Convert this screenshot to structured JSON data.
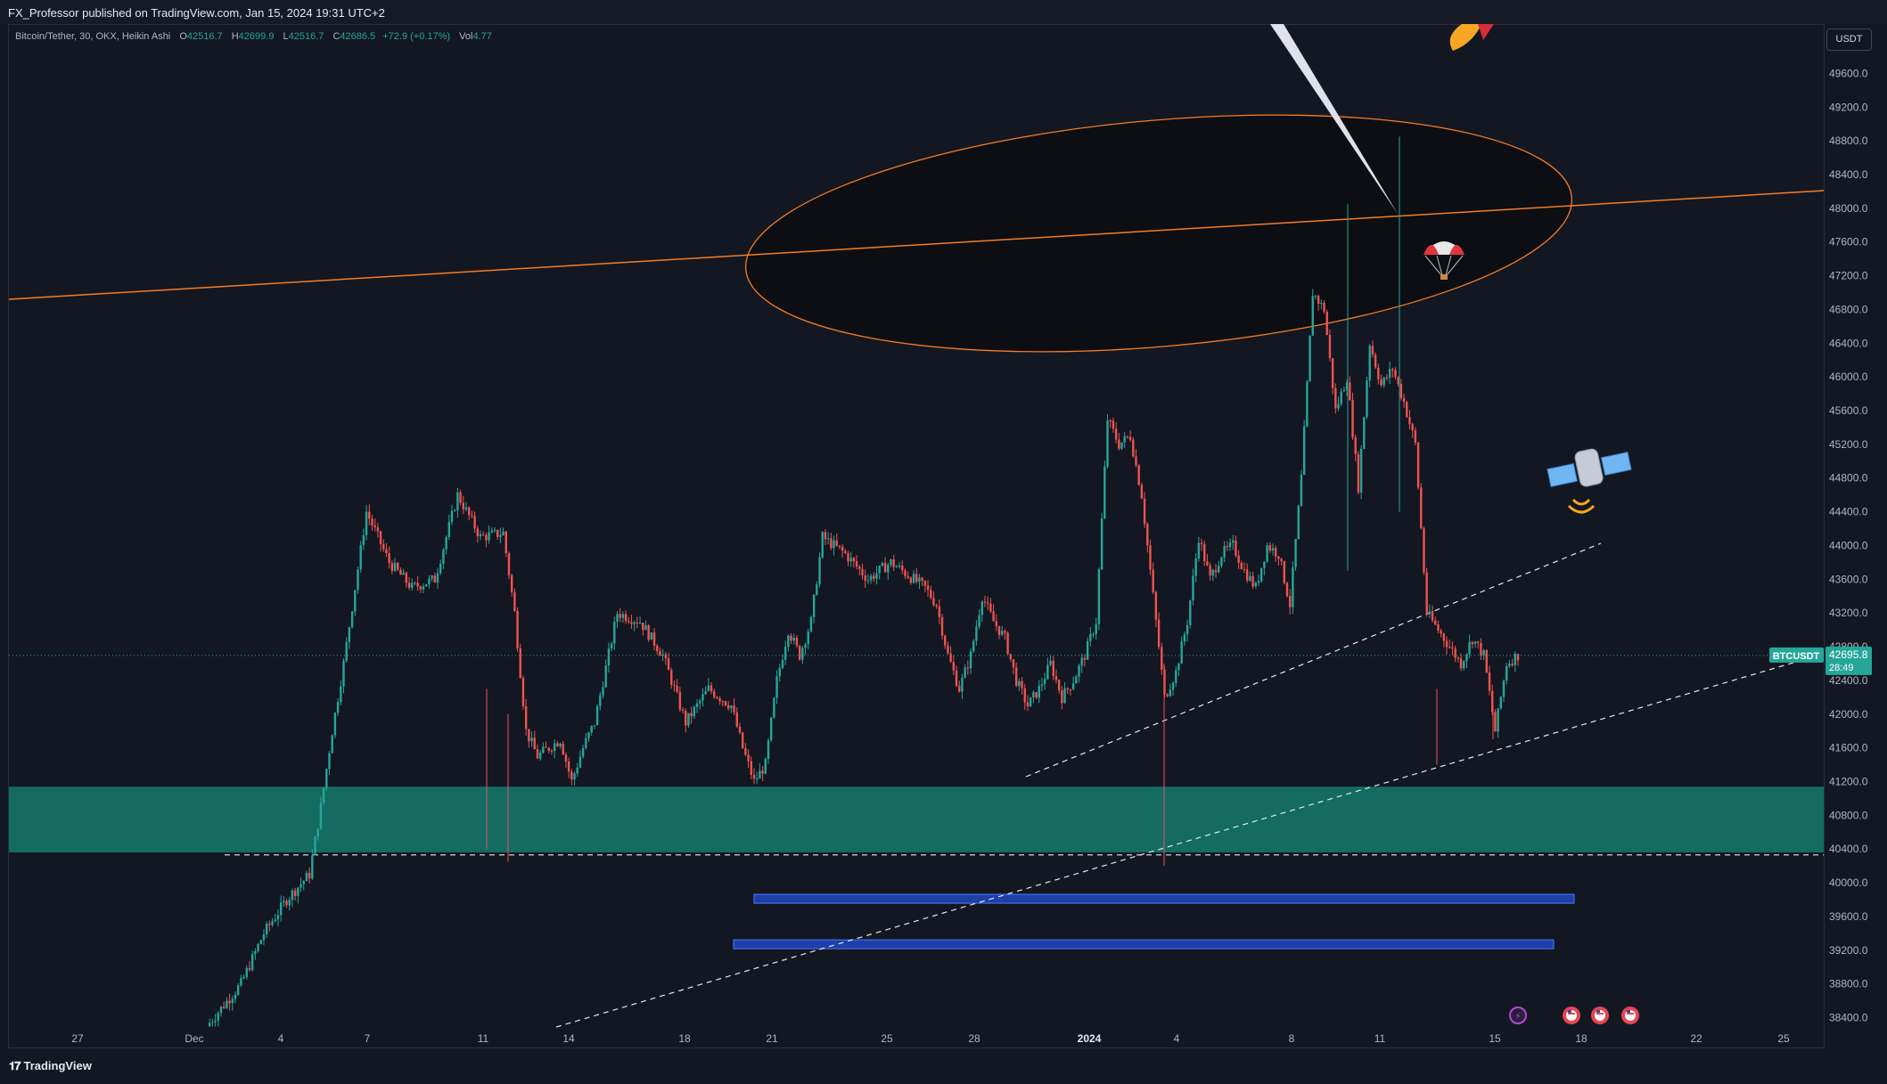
{
  "header": {
    "publisher_line": "FX_Professor published on TradingView.com, Jan 15, 2024 19:31 UTC+2"
  },
  "legend": {
    "symbol": "Bitcoin/Tether, 30, OKX, Heikin Ashi",
    "open_label": "O",
    "open": "42516.7",
    "high_label": "H",
    "high": "42699.9",
    "low_label": "L",
    "low": "42516.7",
    "close_label": "C",
    "close": "42686.5",
    "change": "+72.9 (+0.17%)",
    "vol_label": "Vol",
    "vol": "4.77"
  },
  "currency_button": "USDT",
  "last_price": {
    "symbol_tag": "BTCUSDT",
    "price": "42695.8",
    "countdown": "28:49"
  },
  "footer": {
    "brand": "TradingView"
  },
  "colors": {
    "background": "#131722",
    "up": "#26a69a",
    "down": "#ef5350",
    "zone": "#137066",
    "ellipse": "#f57c26",
    "blue_bar": "#1e3fa8"
  },
  "chart_data": {
    "type": "candlestick",
    "style": "Heikin Ashi",
    "symbol": "Bitcoin/Tether",
    "timeframe": "30",
    "exchange": "OKX",
    "y_axis": {
      "side": "right",
      "ticks": [
        "49600.0",
        "49200.0",
        "48800.0",
        "48400.0",
        "48000.0",
        "47600.0",
        "47200.0",
        "46800.0",
        "46400.0",
        "46000.0",
        "45600.0",
        "45200.0",
        "44800.0",
        "44400.0",
        "44000.0",
        "43600.0",
        "43200.0",
        "42800.0",
        "42400.0",
        "42000.0",
        "41600.0",
        "41200.0",
        "40800.0",
        "40400.0",
        "40000.0",
        "39600.0",
        "39200.0",
        "38800.0",
        "38400.0"
      ],
      "ylim": [
        38240,
        49900
      ]
    },
    "x_axis": {
      "ticks": [
        "27",
        "Dec",
        "4",
        "7",
        "11",
        "14",
        "18",
        "21",
        "25",
        "28",
        "2024",
        "4",
        "8",
        "11",
        "15",
        "18",
        "22",
        "25"
      ],
      "bold_ticks": [
        "2024"
      ]
    },
    "price_path": [
      [
        0,
        38300
      ],
      [
        3,
        38800
      ],
      [
        5,
        39400
      ],
      [
        7,
        39800
      ],
      [
        9,
        40100
      ],
      [
        10,
        40900
      ],
      [
        11,
        41800
      ],
      [
        12,
        42600
      ],
      [
        14,
        44400
      ],
      [
        16,
        43800
      ],
      [
        18,
        43500
      ],
      [
        20,
        43600
      ],
      [
        22,
        44600
      ],
      [
        24,
        44100
      ],
      [
        26,
        44150
      ],
      [
        27,
        43200
      ],
      [
        28,
        41800
      ],
      [
        29,
        41500
      ],
      [
        31,
        41700
      ],
      [
        32,
        41200
      ],
      [
        33,
        41600
      ],
      [
        34,
        41900
      ],
      [
        36,
        43200
      ],
      [
        38,
        43100
      ],
      [
        40,
        42700
      ],
      [
        42,
        41900
      ],
      [
        44,
        42300
      ],
      [
        46,
        42100
      ],
      [
        47,
        41600
      ],
      [
        48,
        41200
      ],
      [
        49,
        41400
      ],
      [
        50,
        42400
      ],
      [
        51,
        43000
      ],
      [
        52,
        42700
      ],
      [
        53,
        43100
      ],
      [
        54,
        44100
      ],
      [
        56,
        43900
      ],
      [
        58,
        43600
      ],
      [
        60,
        43800
      ],
      [
        61,
        43700
      ],
      [
        63,
        43500
      ],
      [
        64,
        43300
      ],
      [
        65,
        42700
      ],
      [
        66,
        42300
      ],
      [
        67,
        42700
      ],
      [
        68,
        43400
      ],
      [
        69,
        43100
      ],
      [
        70,
        42900
      ],
      [
        71,
        42400
      ],
      [
        72,
        42100
      ],
      [
        73,
        42300
      ],
      [
        74,
        42600
      ],
      [
        75,
        42200
      ],
      [
        76,
        42400
      ],
      [
        77,
        42700
      ],
      [
        78,
        43100
      ],
      [
        79,
        45500
      ],
      [
        80,
        45200
      ],
      [
        81,
        45300
      ],
      [
        82,
        44600
      ],
      [
        83,
        43400
      ],
      [
        84,
        42200
      ],
      [
        85,
        42500
      ],
      [
        86,
        43100
      ],
      [
        87,
        44100
      ],
      [
        88,
        43600
      ],
      [
        89,
        43900
      ],
      [
        90,
        44000
      ],
      [
        91,
        43700
      ],
      [
        92,
        43500
      ],
      [
        93,
        44000
      ],
      [
        94,
        43900
      ],
      [
        95,
        43300
      ],
      [
        96,
        44800
      ],
      [
        97,
        47000
      ],
      [
        98,
        46800
      ],
      [
        99,
        45600
      ],
      [
        100,
        46000
      ],
      [
        101,
        44700
      ],
      [
        102,
        46400
      ],
      [
        103,
        45900
      ],
      [
        104,
        46100
      ],
      [
        105,
        45700
      ],
      [
        106,
        45200
      ],
      [
        107,
        43200
      ],
      [
        108,
        43000
      ],
      [
        109,
        42800
      ],
      [
        110,
        42600
      ],
      [
        111,
        42900
      ],
      [
        112,
        42700
      ],
      [
        113,
        41800
      ],
      [
        114,
        42600
      ],
      [
        115,
        42700
      ]
    ],
    "price_path_x_domain": [
      0,
      148
    ],
    "price_path_x_note_scale": "bars",
    "last_price": 42695.8,
    "zones": [
      {
        "type": "demand-zone",
        "low": 40360,
        "high": 41140
      }
    ],
    "levels": [
      {
        "type": "horizontal-dashed",
        "price": 40330
      }
    ],
    "blue_ranges": [
      {
        "price": 39810
      },
      {
        "price": 39270
      }
    ],
    "trendlines": [
      {
        "type": "dashed",
        "from_price": 41250,
        "to_price": 44000
      },
      {
        "type": "dashed",
        "from_price": 38380,
        "to_price": 42700
      }
    ]
  }
}
